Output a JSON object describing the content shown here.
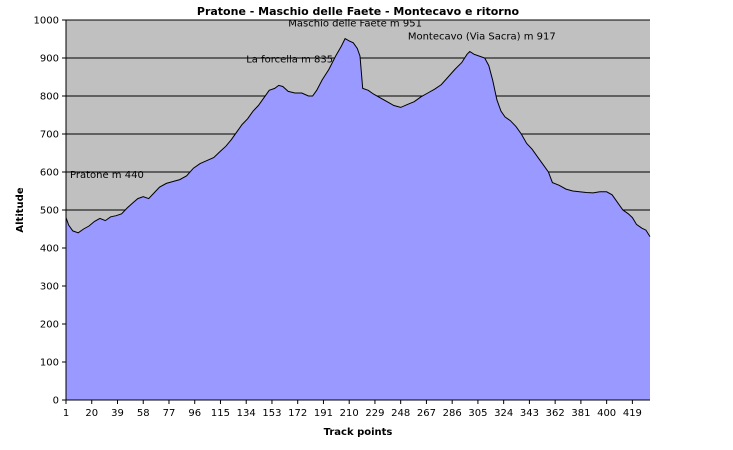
{
  "chart_data": {
    "type": "area",
    "title": "Pratone - Maschio delle Faete - Montecavo e ritorno",
    "xlabel": "Track points",
    "ylabel": "Altitude",
    "ylim": [
      0,
      1000
    ],
    "xlim": [
      1,
      432
    ],
    "grid": true,
    "legend": "none",
    "y_ticks": [
      0,
      100,
      200,
      300,
      400,
      500,
      600,
      700,
      800,
      900,
      1000
    ],
    "x_ticks": [
      1,
      20,
      39,
      58,
      77,
      96,
      115,
      134,
      153,
      172,
      191,
      210,
      229,
      248,
      267,
      286,
      305,
      324,
      343,
      362,
      381,
      400,
      419
    ],
    "colors": {
      "plot_background": "#c0c0c0",
      "area_fill": "#9999ff",
      "area_stroke": "#000000",
      "gridline": "#000000"
    },
    "series": [
      {
        "points": [
          [
            1,
            480
          ],
          [
            3,
            460
          ],
          [
            6,
            445
          ],
          [
            10,
            440
          ],
          [
            14,
            450
          ],
          [
            18,
            458
          ],
          [
            22,
            470
          ],
          [
            26,
            478
          ],
          [
            30,
            472
          ],
          [
            34,
            482
          ],
          [
            38,
            485
          ],
          [
            42,
            490
          ],
          [
            46,
            505
          ],
          [
            50,
            518
          ],
          [
            54,
            530
          ],
          [
            58,
            535
          ],
          [
            62,
            530
          ],
          [
            66,
            545
          ],
          [
            70,
            560
          ],
          [
            75,
            570
          ],
          [
            80,
            575
          ],
          [
            85,
            580
          ],
          [
            90,
            590
          ],
          [
            95,
            610
          ],
          [
            100,
            622
          ],
          [
            105,
            630
          ],
          [
            110,
            638
          ],
          [
            115,
            655
          ],
          [
            119,
            668
          ],
          [
            123,
            685
          ],
          [
            127,
            705
          ],
          [
            131,
            725
          ],
          [
            135,
            740
          ],
          [
            139,
            760
          ],
          [
            143,
            775
          ],
          [
            147,
            795
          ],
          [
            151,
            815
          ],
          [
            155,
            820
          ],
          [
            158,
            828
          ],
          [
            161,
            825
          ],
          [
            165,
            812
          ],
          [
            170,
            808
          ],
          [
            175,
            808
          ],
          [
            180,
            800
          ],
          [
            183,
            800
          ],
          [
            186,
            815
          ],
          [
            190,
            842
          ],
          [
            195,
            870
          ],
          [
            200,
            905
          ],
          [
            204,
            930
          ],
          [
            207,
            951
          ],
          [
            210,
            945
          ],
          [
            213,
            940
          ],
          [
            216,
            925
          ],
          [
            218,
            905
          ],
          [
            220,
            820
          ],
          [
            224,
            815
          ],
          [
            228,
            805
          ],
          [
            233,
            795
          ],
          [
            238,
            785
          ],
          [
            243,
            775
          ],
          [
            248,
            770
          ],
          [
            253,
            778
          ],
          [
            258,
            785
          ],
          [
            263,
            798
          ],
          [
            268,
            808
          ],
          [
            273,
            818
          ],
          [
            278,
            830
          ],
          [
            283,
            850
          ],
          [
            288,
            870
          ],
          [
            293,
            888
          ],
          [
            297,
            910
          ],
          [
            299,
            917
          ],
          [
            302,
            910
          ],
          [
            306,
            905
          ],
          [
            310,
            900
          ],
          [
            313,
            880
          ],
          [
            316,
            840
          ],
          [
            319,
            790
          ],
          [
            322,
            760
          ],
          [
            325,
            745
          ],
          [
            329,
            735
          ],
          [
            333,
            720
          ],
          [
            337,
            700
          ],
          [
            341,
            675
          ],
          [
            345,
            660
          ],
          [
            349,
            640
          ],
          [
            353,
            620
          ],
          [
            357,
            600
          ],
          [
            360,
            572
          ],
          [
            365,
            565
          ],
          [
            370,
            555
          ],
          [
            375,
            550
          ],
          [
            380,
            548
          ],
          [
            385,
            546
          ],
          [
            390,
            545
          ],
          [
            395,
            548
          ],
          [
            400,
            548
          ],
          [
            404,
            540
          ],
          [
            408,
            520
          ],
          [
            412,
            500
          ],
          [
            416,
            490
          ],
          [
            419,
            480
          ],
          [
            422,
            462
          ],
          [
            426,
            452
          ],
          [
            429,
            447
          ],
          [
            432,
            430
          ]
        ]
      }
    ],
    "annotations": [
      {
        "text": "Pratone m 440",
        "x": 1,
        "y": 440
      },
      {
        "text": "La forcella m 835",
        "x": 155,
        "y": 835
      },
      {
        "text": "Maschio delle Faete m 951",
        "x": 207,
        "y": 951
      },
      {
        "text": "Montecavo (Via Sacra) m 917",
        "x": 299,
        "y": 917
      }
    ]
  }
}
